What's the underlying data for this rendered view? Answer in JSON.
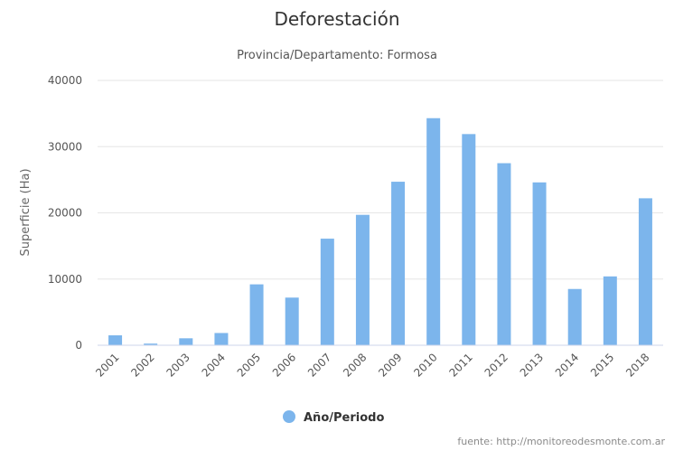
{
  "chart_data": {
    "type": "bar",
    "title": "Deforestación",
    "subtitle": "Provincia/Departamento: Formosa",
    "ylabel": "Superficie (Ha)",
    "xlabel": "",
    "categories": [
      "2001",
      "2002",
      "2003",
      "2004",
      "2005",
      "2006",
      "2007",
      "2008",
      "2009",
      "2010",
      "2011",
      "2012",
      "2013",
      "2014",
      "2015",
      "2018"
    ],
    "series": [
      {
        "name": "Año/Periodo",
        "color": "#7cb5ec",
        "values": [
          1500,
          250,
          1050,
          1850,
          9200,
          7200,
          16100,
          19700,
          24700,
          34300,
          31900,
          27500,
          24600,
          8500,
          10400,
          22200
        ]
      }
    ],
    "ylim": [
      0,
      40000
    ],
    "yticks": [
      "0",
      "10000",
      "20000",
      "30000",
      "40000"
    ],
    "ytick_values": [
      0,
      10000,
      20000,
      30000,
      40000
    ],
    "grid": true,
    "legend": "bottom-center",
    "credits": "fuente: http://monitoreodesmonte.com.ar"
  }
}
